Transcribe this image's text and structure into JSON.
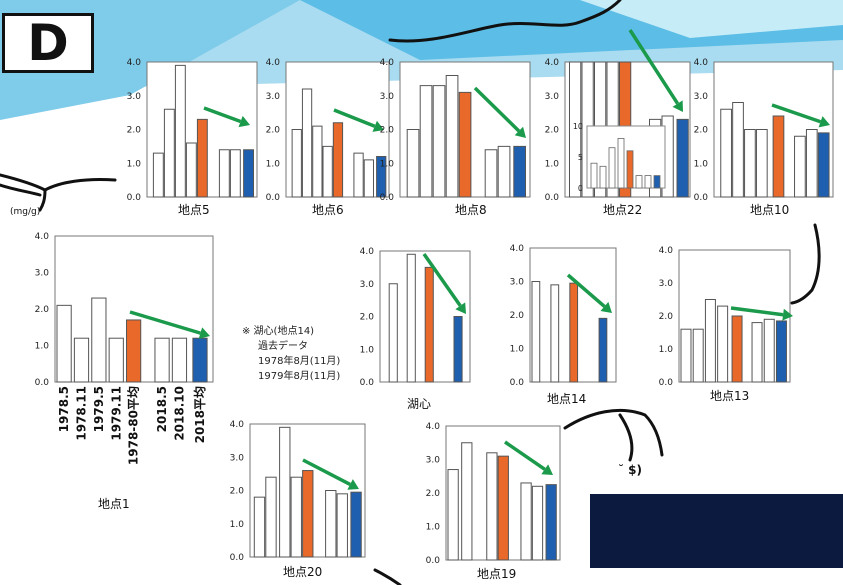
{
  "badge": "D",
  "unit_label": "(mg/g)",
  "note": {
    "line1": "※ 湖心(地点14)",
    "line2": "過去データ",
    "line3": "1978年8月(11月)",
    "line4": "1979年8月(11月)"
  },
  "fragment_text": "˘   $)",
  "colors": {
    "past_bar": "#ffffff",
    "avg_1978_80": "#e8692a",
    "avg_2018": "#1f5fb0",
    "trend_arrow": "#1a9a4a",
    "sky_light": "#a9dcf0",
    "sky_mid": "#5cbde6",
    "navy_box": "#0b1a3e"
  },
  "chart_data": [
    {
      "type": "bar",
      "id": "p5",
      "location": "地点5",
      "ylim": [
        0,
        4
      ],
      "yticks": [
        "0.0",
        "1.0",
        "2.0",
        "3.0",
        "4.0"
      ],
      "values": [
        1.3,
        2.6,
        3.9,
        1.6,
        2.3,
        1.4,
        1.4,
        1.4
      ],
      "colors": [
        "w",
        "w",
        "w",
        "w",
        "o",
        "w",
        "w",
        "b"
      ]
    },
    {
      "type": "bar",
      "id": "p6",
      "location": "地点6",
      "ylim": [
        0,
        4
      ],
      "yticks": [
        "0.0",
        "1.0",
        "2.0",
        "3.0",
        "4.0"
      ],
      "values": [
        2.0,
        3.2,
        2.1,
        1.5,
        2.2,
        1.3,
        1.1,
        1.2
      ],
      "colors": [
        "w",
        "w",
        "w",
        "w",
        "o",
        "w",
        "w",
        "b"
      ]
    },
    {
      "type": "bar",
      "id": "p8",
      "location": "地点8",
      "ylim": [
        0,
        4
      ],
      "yticks": [
        "0.0",
        "1.0",
        "2.0",
        "3.0",
        "4.0"
      ],
      "values": [
        2.0,
        3.3,
        3.3,
        3.6,
        3.1,
        1.4,
        1.5,
        1.5
      ],
      "colors": [
        "w",
        "w",
        "w",
        "w",
        "o",
        "w",
        "w",
        "b"
      ]
    },
    {
      "type": "bar",
      "id": "p22",
      "location": "地点22",
      "ylim": [
        0,
        4
      ],
      "yticks": [
        "0.0",
        "1.0",
        "2.0",
        "3.0",
        "4.0"
      ],
      "values": [
        4.0,
        4.0,
        4.0,
        4.0,
        4.0,
        2.3,
        2.4,
        2.3
      ],
      "colors": [
        "w",
        "w",
        "w",
        "w",
        "o",
        "w",
        "w",
        "b"
      ],
      "inset": {
        "ylim": [
          0,
          10
        ],
        "yticks": [
          "0",
          "5",
          "10"
        ],
        "values": [
          4,
          3.5,
          6.5,
          8,
          6,
          2,
          2,
          2
        ],
        "colors": [
          "w",
          "w",
          "w",
          "w",
          "o",
          "w",
          "w",
          "b"
        ]
      }
    },
    {
      "type": "bar",
      "id": "p10",
      "location": "地点10",
      "ylim": [
        0,
        4
      ],
      "yticks": [
        "0.0",
        "1.0",
        "2.0",
        "3.0",
        "4.0"
      ],
      "values": [
        2.6,
        2.8,
        2.0,
        2.0,
        2.4,
        1.8,
        2.0,
        1.9
      ],
      "colors": [
        "w",
        "w",
        "w",
        "w",
        "o",
        "w",
        "w",
        "b"
      ]
    },
    {
      "type": "bar",
      "id": "p1",
      "location": "地点1",
      "ylim": [
        0,
        4
      ],
      "yticks": [
        "0.0",
        "1.0",
        "2.0",
        "3.0",
        "4.0"
      ],
      "categories": [
        "1978.5",
        "1978.11",
        "1979.5",
        "1979.11",
        "1978-80平均",
        "2018.5",
        "2018.10",
        "2018平均"
      ],
      "values": [
        2.1,
        1.2,
        2.3,
        1.2,
        1.7,
        1.2,
        1.2,
        1.2
      ],
      "colors": [
        "w",
        "w",
        "w",
        "w",
        "o",
        "w",
        "w",
        "b"
      ]
    },
    {
      "type": "bar",
      "id": "center",
      "location": "湖心",
      "ylim": [
        0,
        4
      ],
      "yticks": [
        "0.0",
        "1.0",
        "2.0",
        "3.0",
        "4.0"
      ],
      "values": [
        3.0,
        3.9,
        3.5,
        2.0
      ],
      "colors": [
        "w",
        "w",
        "o",
        "b"
      ]
    },
    {
      "type": "bar",
      "id": "p14",
      "location": "地点14",
      "ylim": [
        0,
        4
      ],
      "yticks": [
        "0.0",
        "1.0",
        "2.0",
        "3.0",
        "4.0"
      ],
      "values": [
        3.0,
        2.9,
        2.95,
        1.9
      ],
      "colors": [
        "w",
        "w",
        "o",
        "b"
      ]
    },
    {
      "type": "bar",
      "id": "p13",
      "location": "地点13",
      "ylim": [
        0,
        4
      ],
      "yticks": [
        "0.0",
        "1.0",
        "2.0",
        "3.0",
        "4.0"
      ],
      "values": [
        1.6,
        1.6,
        2.5,
        2.3,
        2.0,
        1.8,
        1.9,
        1.85
      ],
      "colors": [
        "w",
        "w",
        "w",
        "w",
        "o",
        "w",
        "w",
        "b"
      ]
    },
    {
      "type": "bar",
      "id": "p20",
      "location": "地点20",
      "ylim": [
        0,
        4
      ],
      "yticks": [
        "0.0",
        "1.0",
        "2.0",
        "3.0",
        "4.0"
      ],
      "values": [
        1.8,
        2.4,
        3.9,
        2.4,
        2.6,
        2.0,
        1.9,
        1.95
      ],
      "colors": [
        "w",
        "w",
        "w",
        "w",
        "o",
        "w",
        "w",
        "b"
      ]
    },
    {
      "type": "bar",
      "id": "p19",
      "location": "地点19",
      "ylim": [
        0,
        4
      ],
      "yticks": [
        "0.0",
        "1.0",
        "2.0",
        "3.0",
        "4.0"
      ],
      "values": [
        2.7,
        3.5,
        0,
        3.2,
        3.1,
        2.3,
        2.2,
        2.25
      ],
      "colors": [
        "w",
        "w",
        "w",
        "w",
        "o",
        "w",
        "w",
        "b"
      ]
    }
  ]
}
